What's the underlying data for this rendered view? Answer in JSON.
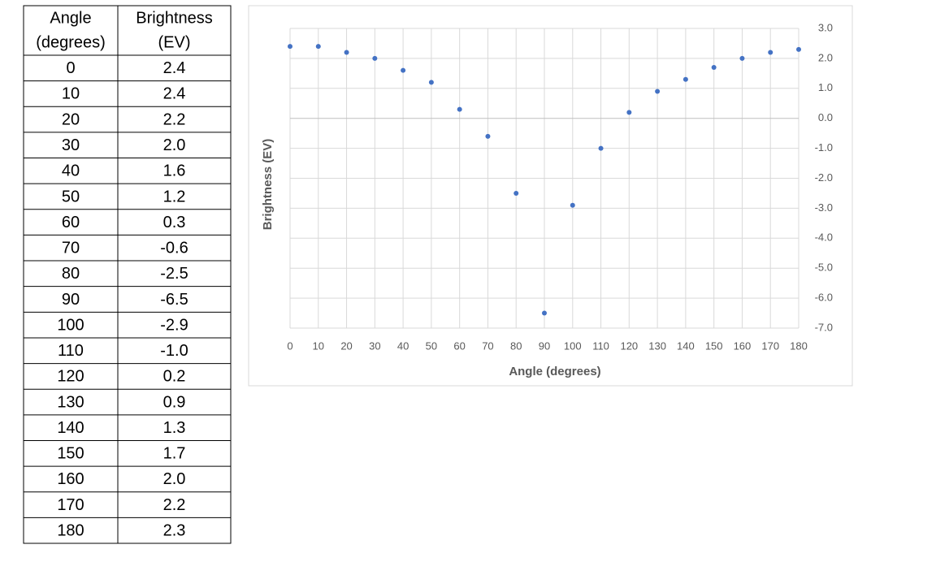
{
  "table": {
    "header": [
      [
        "Angle",
        "(degrees)"
      ],
      [
        "Brightness",
        "(EV)"
      ]
    ],
    "rows": [
      [
        "0",
        "2.4"
      ],
      [
        "10",
        "2.4"
      ],
      [
        "20",
        "2.2"
      ],
      [
        "30",
        "2.0"
      ],
      [
        "40",
        "1.6"
      ],
      [
        "50",
        "1.2"
      ],
      [
        "60",
        "0.3"
      ],
      [
        "70",
        "-0.6"
      ],
      [
        "80",
        "-2.5"
      ],
      [
        "90",
        "-6.5"
      ],
      [
        "100",
        "-2.9"
      ],
      [
        "110",
        "-1.0"
      ],
      [
        "120",
        "0.2"
      ],
      [
        "130",
        "0.9"
      ],
      [
        "140",
        "1.3"
      ],
      [
        "150",
        "1.7"
      ],
      [
        "160",
        "2.0"
      ],
      [
        "170",
        "2.2"
      ],
      [
        "180",
        "2.3"
      ]
    ]
  },
  "chart_data": {
    "type": "scatter",
    "x_label": "Angle (degrees)",
    "y_label": "Brightness (EV)",
    "x": [
      0,
      10,
      20,
      30,
      40,
      50,
      60,
      70,
      80,
      90,
      100,
      110,
      120,
      130,
      140,
      150,
      160,
      170,
      180
    ],
    "values": [
      2.4,
      2.4,
      2.2,
      2,
      1.6,
      1.2,
      0.3,
      -0.6,
      -2.5,
      -6.5,
      -2.9,
      -1,
      0.2,
      0.9,
      1.3,
      1.7,
      2,
      2.2,
      2.3
    ],
    "color": "#4472c4",
    "xlim": [
      0,
      180
    ],
    "xticks": [
      0,
      10,
      20,
      30,
      40,
      50,
      60,
      70,
      80,
      90,
      100,
      110,
      120,
      130,
      140,
      150,
      160,
      170,
      180
    ],
    "ylim": [
      -7,
      3
    ],
    "yticks": [
      {
        "value": 3,
        "label": "3.0"
      },
      {
        "value": 2,
        "label": "2.0"
      },
      {
        "value": 1,
        "label": "1.0"
      },
      {
        "value": 0,
        "label": "0.0"
      },
      {
        "value": -1,
        "label": "-1.0"
      },
      {
        "value": -2,
        "label": "-2.0"
      },
      {
        "value": -3,
        "label": "-3.0"
      },
      {
        "value": -4,
        "label": "-4.0"
      },
      {
        "value": -5,
        "label": "-5.0"
      },
      {
        "value": -6,
        "label": "-6.0"
      },
      {
        "value": -7,
        "label": "-7.0"
      }
    ],
    "y_axis_side": "right",
    "grid": true
  }
}
